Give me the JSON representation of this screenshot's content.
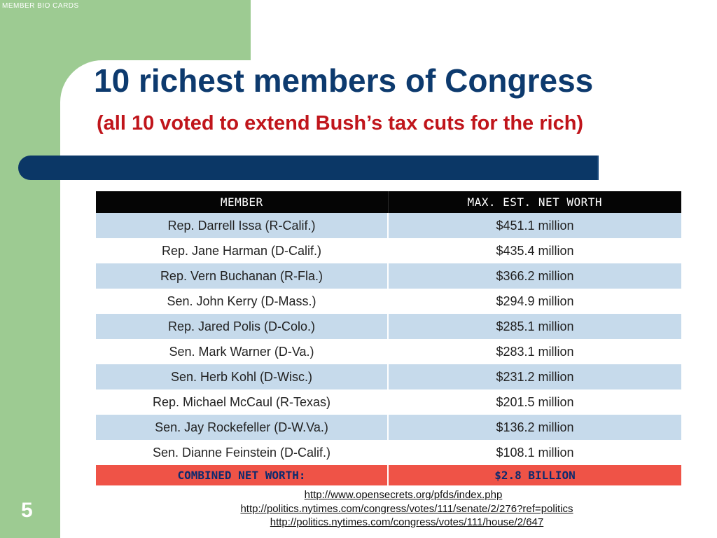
{
  "corner_label": "MEMBER BIO CARDS",
  "title": "10 richest members of Congress",
  "subtitle": "(all 10 voted to extend Bush’s tax cuts for the rich)",
  "table": {
    "headers": [
      "MEMBER",
      "MAX. EST. NET WORTH"
    ],
    "rows": [
      [
        "Rep. Darrell Issa (R-Calif.)",
        "$451.1 million"
      ],
      [
        "Rep. Jane Harman (D-Calif.)",
        "$435.4 million"
      ],
      [
        "Rep. Vern Buchanan (R-Fla.)",
        "$366.2 million"
      ],
      [
        "Sen. John Kerry (D-Mass.)",
        "$294.9 million"
      ],
      [
        "Rep. Jared Polis (D-Colo.)",
        "$285.1 million"
      ],
      [
        "Sen. Mark Warner (D-Va.)",
        "$283.1 million"
      ],
      [
        "Sen. Herb Kohl (D-Wisc.)",
        "$231.2 million"
      ],
      [
        "Rep. Michael McCaul (R-Texas)",
        "$201.5 million"
      ],
      [
        "Sen. Jay Rockefeller (D-W.Va.)",
        "$136.2 million"
      ],
      [
        "Sen. Dianne Feinstein (D-Calif.)",
        "$108.1 million"
      ]
    ],
    "total_label": "COMBINED NET WORTH:",
    "total_value": "$2.8 BILLION"
  },
  "links": [
    "http://www.opensecrets.org/pfds/index.php",
    "http://politics.nytimes.com/congress/votes/111/senate/2/276?ref=politics",
    "http://politics.nytimes.com/congress/votes/111/house/2/647"
  ],
  "slide_number": "5",
  "colors": {
    "green": "#9dcb92",
    "navy": "#0b3766",
    "title_blue": "#0d3a6e",
    "subtitle_red": "#c0151b",
    "row_blue": "#c6daeb",
    "total_red": "#ef5347"
  }
}
